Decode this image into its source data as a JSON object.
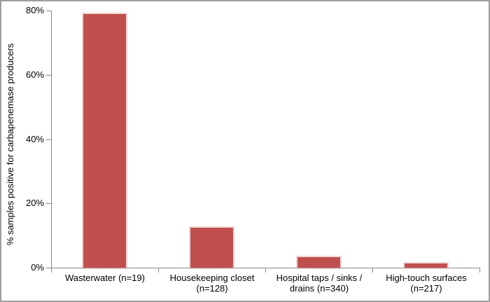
{
  "chart_data": {
    "type": "bar",
    "title": "",
    "xlabel": "",
    "ylabel": "% samples positive for carbapenemase producers",
    "categories": [
      "Wasterwater (n=19)",
      "Housekeeping closet (n=128)",
      "Hospital taps / sinks / drains (n=340)",
      "High-touch surfaces (n=217)"
    ],
    "values": [
      79,
      12.5,
      3.2,
      1.4
    ],
    "value_unit": "%",
    "ylim": [
      0,
      80
    ],
    "yticks": [
      0,
      20,
      40,
      60,
      80
    ],
    "ytick_labels": [
      "0%",
      "20%",
      "40%",
      "60%",
      "80%"
    ],
    "grid": false,
    "legend": "none",
    "bar_color": "#C0504D",
    "axis_color": "#8A8A8A",
    "text_color": "#000000",
    "figure_border_color": "#9E9E9E",
    "background_color": "#FFFFFF"
  }
}
